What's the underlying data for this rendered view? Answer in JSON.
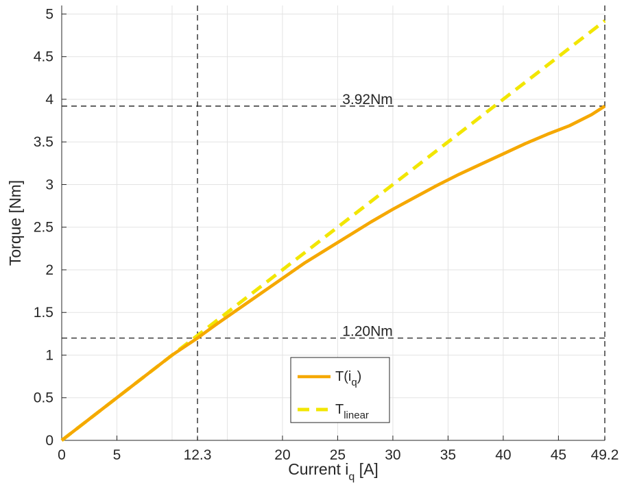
{
  "chart_data": {
    "type": "line",
    "xlabel": {
      "main": "Current i",
      "sub": "q",
      "unit": " [A]"
    },
    "ylabel": "Torque [Nm]",
    "xlim": [
      0,
      49.2
    ],
    "ylim": [
      0,
      5.1
    ],
    "xticks": [
      0,
      5,
      12.3,
      20,
      25,
      30,
      35,
      40,
      45,
      49.2
    ],
    "xtick_labels": [
      "0",
      "5",
      "12.3",
      "20",
      "25",
      "30",
      "35",
      "40",
      "45",
      "49.2"
    ],
    "yticks": [
      0,
      0.5,
      1,
      1.5,
      2,
      2.5,
      3,
      3.5,
      4,
      4.5,
      5
    ],
    "ytick_labels": [
      "0",
      "0.5",
      "1",
      "1.5",
      "2",
      "2.5",
      "3",
      "3.5",
      "4",
      "4.5",
      "5"
    ],
    "xgrid": [
      0,
      5,
      10,
      15,
      20,
      25,
      30,
      35,
      40,
      45
    ],
    "grid": true,
    "legend_position": "bottom-center",
    "series": [
      {
        "name": "T(i",
        "name_sub": "q",
        "name_suffix": ")",
        "style": "solid",
        "color": "#f5a800",
        "x": [
          0,
          2,
          4,
          6,
          8,
          10,
          12.3,
          14,
          16,
          18,
          20,
          22,
          24,
          26,
          28,
          30,
          32,
          34,
          36,
          38,
          40,
          42,
          44,
          46,
          48,
          49.2
        ],
        "y": [
          0,
          0.2,
          0.4,
          0.6,
          0.8,
          1.0,
          1.2,
          1.36,
          1.54,
          1.72,
          1.9,
          2.08,
          2.24,
          2.4,
          2.56,
          2.71,
          2.85,
          2.99,
          3.12,
          3.24,
          3.36,
          3.48,
          3.59,
          3.69,
          3.82,
          3.92
        ]
      },
      {
        "name": "T",
        "name_sub": "linear",
        "name_suffix": "",
        "style": "dashed",
        "color": "#f2e600",
        "x": [
          0,
          49.2
        ],
        "y": [
          0,
          4.92
        ]
      }
    ],
    "reference_lines": {
      "vertical": [
        12.3,
        49.2
      ],
      "horizontal": [
        {
          "y": 3.92,
          "label": "3.92Nm"
        },
        {
          "y": 1.2,
          "label": "1.20Nm"
        }
      ]
    }
  }
}
